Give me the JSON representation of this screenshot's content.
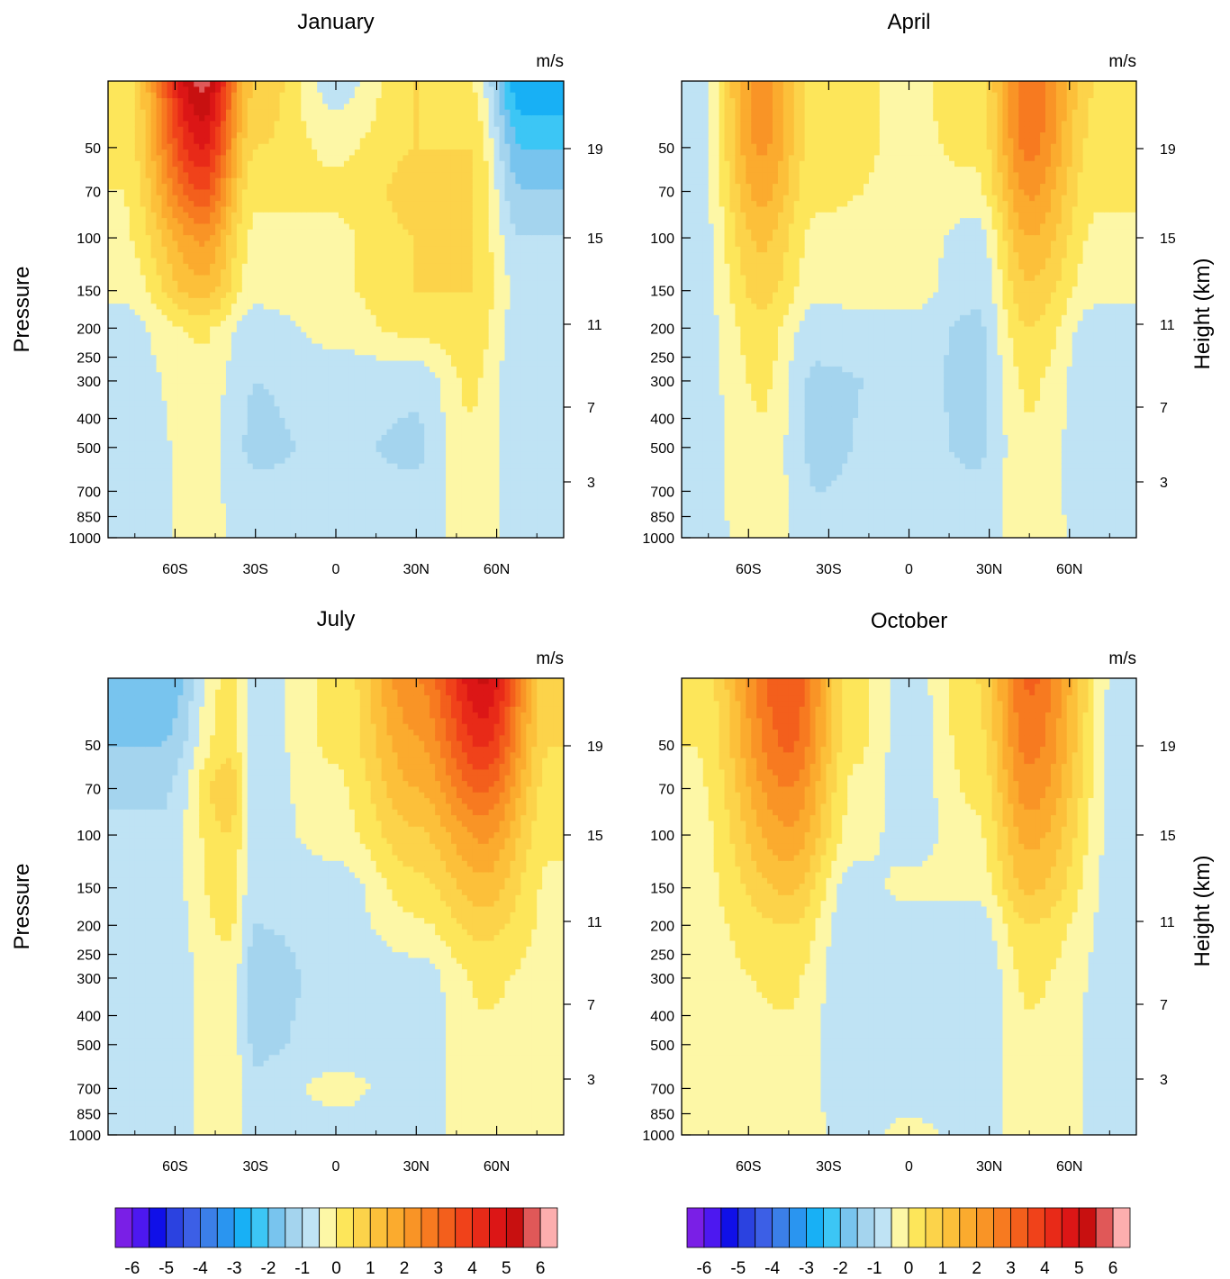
{
  "units_label": "m/s",
  "left_axis_label": "Pressure",
  "right_axis_label": "Height (km)",
  "pressure_ticks": [
    50,
    70,
    100,
    150,
    200,
    250,
    300,
    400,
    500,
    700,
    850,
    1000
  ],
  "height_ticks": [
    19,
    15,
    11,
    7,
    3
  ],
  "lat_ticks": [
    "60S",
    "30S",
    "0",
    "30N",
    "60N"
  ],
  "colorbar_labels": [
    "-6",
    "-5",
    "-4",
    "-3",
    "-2",
    "-1",
    "0",
    "1",
    "2",
    "3",
    "4",
    "5",
    "6"
  ],
  "colors": {
    "neg_levels": [
      "#7a1fe6",
      "#4d18f0",
      "#1010e8",
      "#2b42e0",
      "#3c5fe6",
      "#3b7fe8",
      "#2a95f0",
      "#18b0f5",
      "#3cc6f5",
      "#78c4ee",
      "#a4d4ee",
      "#bfe3f4"
    ],
    "pos_levels": [
      "#fdf7a6",
      "#fde65a",
      "#fcd34a",
      "#fcc03a",
      "#fbab2e",
      "#f99426",
      "#f77a20",
      "#f35f1c",
      "#f0421a",
      "#e82a18",
      "#dc1616",
      "#c81010",
      "#e05858",
      "#fcaeae"
    ]
  },
  "chart_data": [
    {
      "type": "contour",
      "title": "January",
      "xlabel": "",
      "ylabel": "Pressure",
      "y2label": "Height (km)",
      "ylog": true,
      "ylim": [
        1000,
        30
      ],
      "xlim": [
        -85,
        85
      ],
      "colorbar_range": [
        -6,
        6
      ],
      "field": [
        {
          "lat": -80,
          "values": [
            0.6,
            0.6,
            0.5,
            0.4,
            0.1,
            -0.2,
            -0.3,
            -0.4,
            -0.4,
            -0.4
          ]
        },
        {
          "lat": -50,
          "values": [
            6.2,
            5.0,
            4.0,
            2.6,
            1.8,
            0.6,
            0.3,
            0.2,
            0.2,
            0.2
          ]
        },
        {
          "lat": -30,
          "values": [
            1.5,
            1.0,
            0.6,
            0.4,
            0.2,
            -0.3,
            -0.5,
            -0.6,
            -0.4,
            -0.3
          ]
        },
        {
          "lat": 0,
          "values": [
            -0.3,
            0.4,
            0.6,
            0.4,
            0.4,
            0.2,
            -0.3,
            -0.4,
            -0.4,
            -0.4
          ]
        },
        {
          "lat": 30,
          "values": [
            1.0,
            1.0,
            1.2,
            1.0,
            1.0,
            0.7,
            -0.4,
            -0.6,
            -0.4,
            -0.3
          ]
        },
        {
          "lat": 50,
          "values": [
            0.5,
            1.0,
            1.0,
            1.0,
            1.0,
            0.8,
            0.6,
            0.4,
            0.3,
            0.3
          ]
        },
        {
          "lat": 70,
          "values": [
            -2.5,
            -1.5,
            -1.0,
            -0.5,
            -0.2,
            -0.3,
            -0.4,
            -0.4,
            -0.3,
            -0.2
          ]
        }
      ],
      "levels_hPa": [
        30,
        50,
        70,
        100,
        150,
        200,
        300,
        500,
        700,
        1000
      ]
    },
    {
      "type": "contour",
      "title": "April",
      "xlabel": "",
      "ylabel": "",
      "y2label": "Height (km)",
      "ylog": true,
      "ylim": [
        1000,
        30
      ],
      "xlim": [
        -85,
        85
      ],
      "colorbar_range": [
        -6,
        6
      ],
      "field": [
        {
          "lat": -80,
          "values": [
            -0.3,
            -0.3,
            -0.3,
            -0.3,
            -0.3,
            -0.3,
            -0.3,
            -0.3,
            -0.3,
            -0.3
          ]
        },
        {
          "lat": -55,
          "values": [
            2.8,
            2.6,
            2.2,
            1.6,
            1.2,
            0.8,
            0.6,
            0.4,
            0.4,
            0.3
          ]
        },
        {
          "lat": -35,
          "values": [
            0.8,
            0.8,
            0.6,
            0.4,
            0.2,
            -0.3,
            -0.6,
            -0.6,
            -0.5,
            -0.4
          ]
        },
        {
          "lat": 0,
          "values": [
            0.4,
            0.4,
            0.4,
            0.3,
            0.3,
            -0.3,
            -0.4,
            -0.3,
            -0.3,
            -0.3
          ]
        },
        {
          "lat": 25,
          "values": [
            0.8,
            0.6,
            0.4,
            -0.3,
            -0.4,
            -0.6,
            -0.6,
            -0.6,
            -0.4,
            -0.3
          ]
        },
        {
          "lat": 45,
          "values": [
            3.4,
            3.2,
            2.6,
            2.0,
            1.4,
            1.0,
            0.6,
            0.4,
            0.4,
            0.4
          ]
        },
        {
          "lat": 70,
          "values": [
            1.0,
            0.8,
            0.6,
            0.4,
            0.2,
            -0.3,
            -0.4,
            -0.4,
            -0.4,
            -0.3
          ]
        }
      ],
      "levels_hPa": [
        30,
        50,
        70,
        100,
        150,
        200,
        300,
        500,
        700,
        1000
      ]
    },
    {
      "type": "contour",
      "title": "July",
      "xlabel": "",
      "ylabel": "Pressure",
      "y2label": "Height (km)",
      "ylog": true,
      "ylim": [
        1000,
        30
      ],
      "xlim": [
        -85,
        85
      ],
      "colorbar_range": [
        -6,
        6
      ],
      "field": [
        {
          "lat": -65,
          "values": [
            -1.5,
            -1.0,
            -0.6,
            -0.4,
            -0.3,
            -0.3,
            -0.3,
            -0.3,
            -0.3,
            -0.3
          ]
        },
        {
          "lat": -40,
          "values": [
            0.6,
            0.8,
            1.4,
            1.0,
            0.8,
            0.6,
            0.3,
            0.3,
            0.3,
            0.3
          ]
        },
        {
          "lat": -30,
          "values": [
            -0.3,
            -0.3,
            -0.3,
            -0.3,
            -0.4,
            -0.5,
            -0.8,
            -0.6,
            -0.4,
            -0.3
          ]
        },
        {
          "lat": 0,
          "values": [
            0.6,
            0.6,
            0.4,
            0.3,
            -0.3,
            -0.3,
            -0.3,
            -0.3,
            0.2,
            -0.3
          ]
        },
        {
          "lat": 30,
          "values": [
            3.0,
            2.4,
            2.0,
            1.4,
            0.8,
            0.4,
            -0.3,
            -0.3,
            -0.3,
            -0.3
          ]
        },
        {
          "lat": 55,
          "values": [
            5.6,
            4.6,
            3.6,
            2.6,
            1.8,
            1.2,
            0.6,
            0.4,
            0.4,
            0.4
          ]
        },
        {
          "lat": 80,
          "values": [
            1.2,
            1.0,
            0.8,
            0.6,
            0.4,
            0.4,
            0.3,
            0.3,
            0.3,
            0.3
          ]
        }
      ],
      "levels_hPa": [
        30,
        50,
        70,
        100,
        150,
        200,
        300,
        500,
        700,
        1000
      ]
    },
    {
      "type": "contour",
      "title": "October",
      "xlabel": "",
      "ylabel": "",
      "y2label": "Height (km)",
      "ylog": true,
      "ylim": [
        1000,
        30
      ],
      "xlim": [
        -85,
        85
      ],
      "colorbar_range": [
        -6,
        6
      ],
      "field": [
        {
          "lat": -80,
          "values": [
            0.6,
            0.5,
            0.4,
            0.3,
            0.3,
            0.3,
            0.3,
            0.3,
            0.3,
            0.3
          ]
        },
        {
          "lat": -45,
          "values": [
            4.0,
            3.6,
            3.0,
            2.4,
            1.6,
            1.0,
            0.6,
            0.4,
            0.4,
            0.4
          ]
        },
        {
          "lat": -20,
          "values": [
            0.6,
            0.6,
            0.4,
            0.3,
            -0.3,
            -0.4,
            -0.5,
            -0.4,
            -0.4,
            -0.3
          ]
        },
        {
          "lat": 0,
          "values": [
            -0.3,
            -0.3,
            -0.3,
            -0.3,
            0.2,
            -0.3,
            -0.3,
            -0.3,
            -0.3,
            0.2
          ]
        },
        {
          "lat": 25,
          "values": [
            1.0,
            0.8,
            0.6,
            0.4,
            0.2,
            -0.3,
            -0.5,
            -0.4,
            -0.3,
            -0.3
          ]
        },
        {
          "lat": 45,
          "values": [
            3.6,
            3.2,
            2.8,
            2.2,
            1.6,
            1.0,
            0.6,
            0.4,
            0.4,
            0.4
          ]
        },
        {
          "lat": 80,
          "values": [
            -0.3,
            -0.3,
            -0.3,
            -0.3,
            -0.3,
            -0.3,
            -0.3,
            -0.3,
            -0.3,
            -0.3
          ]
        }
      ],
      "levels_hPa": [
        30,
        50,
        70,
        100,
        150,
        200,
        300,
        500,
        700,
        1000
      ]
    }
  ]
}
